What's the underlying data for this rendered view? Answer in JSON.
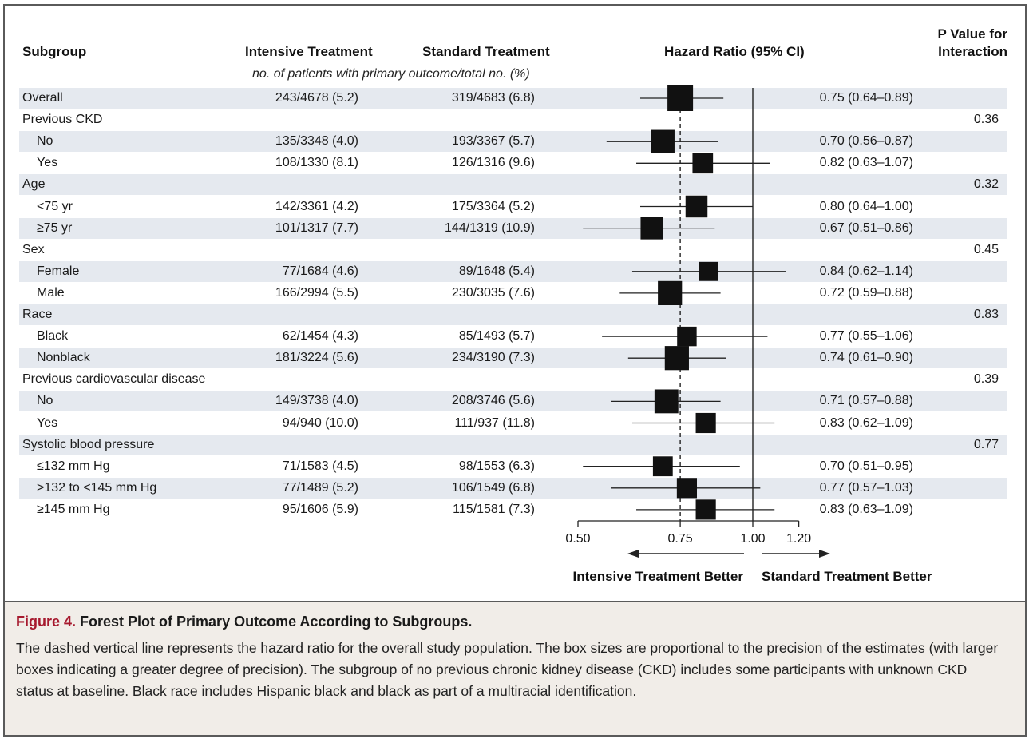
{
  "headers": {
    "subgroup": "Subgroup",
    "intensive": "Intensive Treatment",
    "standard": "Standard Treatment",
    "hazard": "Hazard Ratio (95% CI)",
    "pvalue_line1": "P Value for",
    "pvalue_line2": "Interaction",
    "subheader": "no. of patients with primary outcome/total no. (%)"
  },
  "rows": [
    {
      "label": "Overall",
      "indent": false,
      "intensive": "243/4678 (5.2)",
      "standard": "319/4683 (6.8)",
      "hr_text": "0.75 (0.64–0.89)",
      "p": "",
      "hr": 0.75,
      "lo": 0.64,
      "hi": 0.89,
      "weight": 1.0
    },
    {
      "label": "Previous CKD",
      "indent": false,
      "intensive": "",
      "standard": "",
      "hr_text": "",
      "p": "0.36"
    },
    {
      "label": "No",
      "indent": true,
      "intensive": "135/3348 (4.0)",
      "standard": "193/3367 (5.7)",
      "hr_text": "0.70 (0.56–0.87)",
      "p": "",
      "hr": 0.7,
      "lo": 0.56,
      "hi": 0.87,
      "weight": 0.85
    },
    {
      "label": "Yes",
      "indent": true,
      "intensive": "108/1330 (8.1)",
      "standard": "126/1316 (9.6)",
      "hr_text": "0.82 (0.63–1.07)",
      "p": "",
      "hr": 0.82,
      "lo": 0.63,
      "hi": 1.07,
      "weight": 0.65
    },
    {
      "label": "Age",
      "indent": false,
      "intensive": "",
      "standard": "",
      "hr_text": "",
      "p": "0.32"
    },
    {
      "label": "<75 yr",
      "indent": true,
      "intensive": "142/3361 (4.2)",
      "standard": "175/3364 (5.2)",
      "hr_text": "0.80 (0.64–1.00)",
      "p": "",
      "hr": 0.8,
      "lo": 0.64,
      "hi": 1.0,
      "weight": 0.75
    },
    {
      "label": "≥75 yr",
      "indent": true,
      "intensive": "101/1317 (7.7)",
      "standard": "144/1319 (10.9)",
      "hr_text": "0.67 (0.51–0.86)",
      "p": "",
      "hr": 0.67,
      "lo": 0.51,
      "hi": 0.86,
      "weight": 0.78
    },
    {
      "label": "Sex",
      "indent": false,
      "intensive": "",
      "standard": "",
      "hr_text": "",
      "p": "0.45"
    },
    {
      "label": "Female",
      "indent": true,
      "intensive": "77/1684 (4.6)",
      "standard": "89/1648 (5.4)",
      "hr_text": "0.84 (0.62–1.14)",
      "p": "",
      "hr": 0.84,
      "lo": 0.62,
      "hi": 1.14,
      "weight": 0.55
    },
    {
      "label": "Male",
      "indent": true,
      "intensive": "166/2994 (5.5)",
      "standard": "230/3035 (7.6)",
      "hr_text": "0.72 (0.59–0.88)",
      "p": "",
      "hr": 0.72,
      "lo": 0.59,
      "hi": 0.88,
      "weight": 0.9
    },
    {
      "label": "Race",
      "indent": false,
      "intensive": "",
      "standard": "",
      "hr_text": "",
      "p": "0.83"
    },
    {
      "label": "Black",
      "indent": true,
      "intensive": "62/1454 (4.3)",
      "standard": "85/1493 (5.7)",
      "hr_text": "0.77 (0.55–1.06)",
      "p": "",
      "hr": 0.77,
      "lo": 0.55,
      "hi": 1.06,
      "weight": 0.58
    },
    {
      "label": "Nonblack",
      "indent": true,
      "intensive": "181/3224 (5.6)",
      "standard": "234/3190 (7.3)",
      "hr_text": "0.74 (0.61–0.90)",
      "p": "",
      "hr": 0.74,
      "lo": 0.61,
      "hi": 0.9,
      "weight": 0.9
    },
    {
      "label": "Previous cardiovascular disease",
      "indent": false,
      "intensive": "",
      "standard": "",
      "hr_text": "",
      "p": "0.39"
    },
    {
      "label": "No",
      "indent": true,
      "intensive": "149/3738 (4.0)",
      "standard": "208/3746 (5.6)",
      "hr_text": "0.71 (0.57–0.88)",
      "p": "",
      "hr": 0.71,
      "lo": 0.57,
      "hi": 0.88,
      "weight": 0.88
    },
    {
      "label": "Yes",
      "indent": true,
      "intensive": "94/940 (10.0)",
      "standard": "111/937 (11.8)",
      "hr_text": "0.83 (0.62–1.09)",
      "p": "",
      "hr": 0.83,
      "lo": 0.62,
      "hi": 1.09,
      "weight": 0.62
    },
    {
      "label": "Systolic blood pressure",
      "indent": false,
      "intensive": "",
      "standard": "",
      "hr_text": "",
      "p": "0.77"
    },
    {
      "label": "≤132 mm Hg",
      "indent": true,
      "intensive": "71/1583 (4.5)",
      "standard": "98/1553 (6.3)",
      "hr_text": "0.70 (0.51–0.95)",
      "p": "",
      "hr": 0.7,
      "lo": 0.51,
      "hi": 0.95,
      "weight": 0.6
    },
    {
      "label": ">132 to <145 mm Hg",
      "indent": true,
      "intensive": "77/1489 (5.2)",
      "standard": "106/1549 (6.8)",
      "hr_text": "0.77 (0.57–1.03)",
      "p": "",
      "hr": 0.77,
      "lo": 0.57,
      "hi": 1.03,
      "weight": 0.62
    },
    {
      "label": "≥145 mm Hg",
      "indent": true,
      "intensive": "95/1606 (5.9)",
      "standard": "115/1581 (7.3)",
      "hr_text": "0.83 (0.63–1.09)",
      "p": "",
      "hr": 0.83,
      "lo": 0.63,
      "hi": 1.09,
      "weight": 0.62
    }
  ],
  "axis": {
    "ticks": [
      "0.50",
      "0.75",
      "1.00",
      "1.20"
    ],
    "left_label": "Intensive Treatment Better",
    "right_label": "Standard Treatment Better"
  },
  "caption": {
    "figure": "Figure 4.",
    "title": "Forest Plot of Primary Outcome According to Subgroups.",
    "body": "The dashed vertical line represents the hazard ratio for the overall study population. The box sizes are proportional to the precision of the estimates (with larger boxes indicating a greater degree of precision). The subgroup of no previous chronic kidney disease (CKD) includes some participants with unknown CKD status at baseline. Black race includes Hispanic black and black as part of a multiracial identification."
  },
  "colors": {
    "shade": "#e5e9ef",
    "figure_label": "#a6192e",
    "caption_bg": "#f1ede8"
  },
  "chart_data": {
    "type": "scatter",
    "subtype": "forest-plot",
    "title": "Hazard Ratio (95% CI)",
    "x_scale": "log",
    "xlim": [
      0.5,
      1.2
    ],
    "ticks": [
      0.5,
      0.75,
      1.0,
      1.2
    ],
    "reference_lines": {
      "null": 1.0,
      "overall_dashed": 0.75
    },
    "xlabel_left": "Intensive Treatment Better",
    "xlabel_right": "Standard Treatment Better",
    "points": [
      {
        "group": "Overall",
        "hr": 0.75,
        "lo": 0.64,
        "hi": 0.89
      },
      {
        "group": "Previous CKD: No",
        "hr": 0.7,
        "lo": 0.56,
        "hi": 0.87
      },
      {
        "group": "Previous CKD: Yes",
        "hr": 0.82,
        "lo": 0.63,
        "hi": 1.07
      },
      {
        "group": "Age: <75 yr",
        "hr": 0.8,
        "lo": 0.64,
        "hi": 1.0
      },
      {
        "group": "Age: ≥75 yr",
        "hr": 0.67,
        "lo": 0.51,
        "hi": 0.86
      },
      {
        "group": "Sex: Female",
        "hr": 0.84,
        "lo": 0.62,
        "hi": 1.14
      },
      {
        "group": "Sex: Male",
        "hr": 0.72,
        "lo": 0.59,
        "hi": 0.88
      },
      {
        "group": "Race: Black",
        "hr": 0.77,
        "lo": 0.55,
        "hi": 1.06
      },
      {
        "group": "Race: Nonblack",
        "hr": 0.74,
        "lo": 0.61,
        "hi": 0.9
      },
      {
        "group": "Previous CVD: No",
        "hr": 0.71,
        "lo": 0.57,
        "hi": 0.88
      },
      {
        "group": "Previous CVD: Yes",
        "hr": 0.83,
        "lo": 0.62,
        "hi": 1.09
      },
      {
        "group": "SBP: ≤132 mm Hg",
        "hr": 0.7,
        "lo": 0.51,
        "hi": 0.95
      },
      {
        "group": "SBP: >132 to <145 mm Hg",
        "hr": 0.77,
        "lo": 0.57,
        "hi": 1.03
      },
      {
        "group": "SBP: ≥145 mm Hg",
        "hr": 0.83,
        "lo": 0.63,
        "hi": 1.09
      }
    ]
  }
}
